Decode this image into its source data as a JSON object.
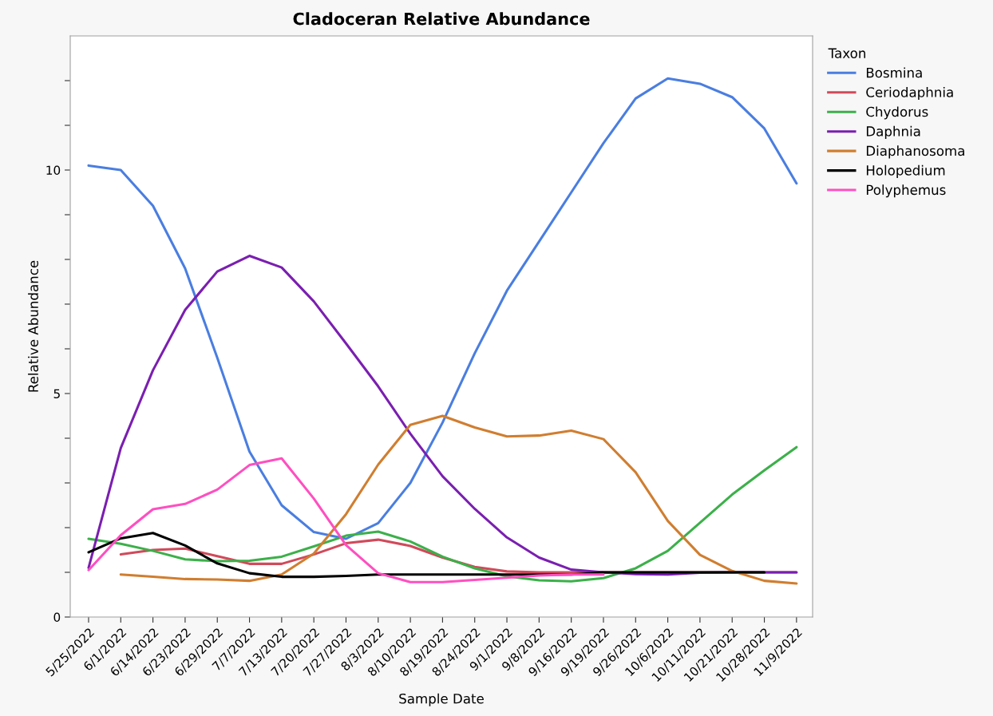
{
  "chart_data": {
    "type": "line",
    "title": "Cladoceran Relative Abundance",
    "xlabel": "Sample Date",
    "ylabel": "Relative Abundance",
    "legend_title": "Taxon",
    "legend": "right",
    "grid": false,
    "line_style": "solid",
    "marker": "none",
    "categories": [
      "5/25/2022",
      "6/1/2022",
      "6/14/2022",
      "6/23/2022",
      "6/29/2022",
      "7/7/2022",
      "7/13/2022",
      "7/20/2022",
      "7/27/2022",
      "8/3/2022",
      "8/10/2022",
      "8/19/2022",
      "8/24/2022",
      "9/1/2022",
      "9/8/2022",
      "9/16/2022",
      "9/19/2022",
      "9/26/2022",
      "10/6/2022",
      "10/11/2022",
      "10/21/2022",
      "10/28/2022",
      "11/9/2022"
    ],
    "ylim": [
      0,
      13
    ],
    "yticks": [
      0,
      {
        "value": 1,
        "label": null
      },
      {
        "value": 2,
        "label": null
      },
      {
        "value": 3,
        "label": null
      },
      {
        "value": 4,
        "label": null
      },
      5,
      {
        "value": 6,
        "label": null
      },
      {
        "value": 7,
        "label": null
      },
      {
        "value": 8,
        "label": null
      },
      {
        "value": 9,
        "label": null
      },
      10,
      {
        "value": 11,
        "label": null
      },
      {
        "value": 12,
        "label": null
      }
    ],
    "series": [
      {
        "name": "Bosmina",
        "color": "#4a7ee0",
        "values": [
          10.1,
          10.0,
          9.2,
          7.8,
          5.8,
          3.7,
          2.5,
          1.9,
          1.75,
          2.1,
          3.0,
          4.35,
          5.9,
          7.3,
          8.4,
          9.5,
          10.6,
          11.6,
          12.05,
          11.93,
          11.63,
          10.93,
          9.7
        ]
      },
      {
        "name": "Ceriodaphnia",
        "color": "#d04a5a",
        "values": [
          null,
          1.4,
          1.5,
          1.53,
          1.36,
          1.19,
          1.19,
          1.4,
          1.65,
          1.73,
          1.59,
          1.33,
          1.12,
          1.02,
          1.0,
          1.0,
          1.0,
          1.0,
          1.0,
          1.0,
          1.0,
          1.0,
          1.0
        ]
      },
      {
        "name": "Chydorus",
        "color": "#3cb04a",
        "values": [
          1.75,
          1.64,
          1.48,
          1.29,
          1.25,
          1.26,
          1.35,
          1.58,
          1.82,
          1.91,
          1.69,
          1.35,
          1.09,
          0.91,
          0.82,
          0.8,
          0.87,
          1.09,
          1.48,
          2.11,
          2.74,
          3.28,
          3.8
        ]
      },
      {
        "name": "Daphnia",
        "color": "#7a1fb0",
        "values": [
          1.1,
          3.78,
          5.52,
          6.87,
          7.73,
          8.08,
          7.82,
          7.06,
          6.12,
          5.16,
          4.1,
          3.15,
          2.42,
          1.78,
          1.33,
          1.06,
          1.0,
          0.96,
          0.95,
          0.99,
          1.0,
          1.0,
          1.0
        ]
      },
      {
        "name": "Diaphanosoma",
        "color": "#d07e30",
        "values": [
          null,
          0.95,
          0.9,
          0.85,
          0.84,
          0.81,
          0.95,
          1.42,
          2.3,
          3.41,
          4.3,
          4.5,
          4.24,
          4.04,
          4.06,
          4.17,
          3.98,
          3.24,
          2.15,
          1.39,
          1.03,
          0.81,
          0.75
        ]
      },
      {
        "name": "Holopedium",
        "color": "#000000",
        "values": [
          1.45,
          1.76,
          1.88,
          1.6,
          1.2,
          0.98,
          0.9,
          0.9,
          0.92,
          0.95,
          0.95,
          0.95,
          0.95,
          0.95,
          0.95,
          0.95,
          1.0,
          1.0,
          1.0,
          1.0,
          1.0,
          1.0,
          null
        ]
      },
      {
        "name": "Polyphemus",
        "color": "#ff4fc0",
        "values": [
          1.05,
          1.83,
          2.41,
          2.53,
          2.85,
          3.4,
          3.55,
          2.65,
          1.61,
          0.98,
          0.78,
          0.78,
          0.83,
          0.88,
          0.93,
          0.95,
          0.95,
          null,
          null,
          null,
          null,
          null,
          null
        ]
      }
    ]
  }
}
